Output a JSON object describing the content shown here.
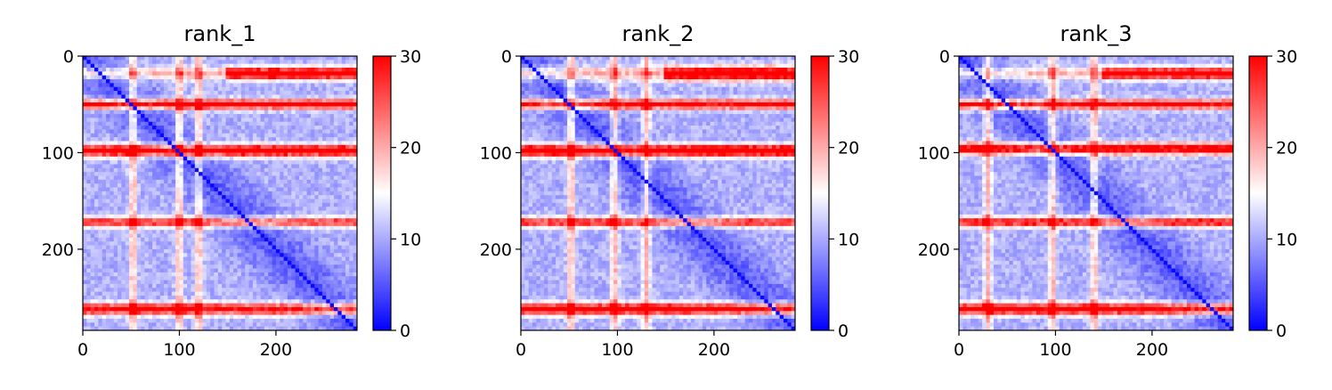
{
  "chart_data": [
    {
      "type": "heatmap",
      "title": "rank_1",
      "x_ticks": [
        "0",
        "100",
        "200"
      ],
      "y_ticks": [
        "0",
        "100",
        "200"
      ],
      "x_range": [
        0,
        284
      ],
      "y_range": [
        284,
        0
      ],
      "colorbar": {
        "ticks": [
          "0",
          "10",
          "20",
          "30"
        ],
        "vmin": 0,
        "vmax": 30,
        "colormap": "bwr",
        "colors": [
          "#0000ff",
          "#ffffff",
          "#ff0000"
        ]
      },
      "bands": [
        {
          "center": 18,
          "width": 6,
          "strength": 30,
          "x_from": 150
        },
        {
          "center": 50,
          "width": 5,
          "strength": 26
        },
        {
          "center": 98,
          "width": 6,
          "strength": 28
        },
        {
          "center": 172,
          "width": 5,
          "strength": 20
        },
        {
          "center": 262,
          "width": 6,
          "strength": 24
        }
      ],
      "stripes": [
        52,
        100,
        120
      ]
    },
    {
      "type": "heatmap",
      "title": "rank_2",
      "x_ticks": [
        "0",
        "100",
        "200"
      ],
      "y_ticks": [
        "0",
        "100",
        "200"
      ],
      "x_range": [
        0,
        284
      ],
      "y_range": [
        284,
        0
      ],
      "colorbar": {
        "ticks": [
          "0",
          "10",
          "20",
          "30"
        ],
        "vmin": 0,
        "vmax": 30,
        "colormap": "bwr",
        "colors": [
          "#0000ff",
          "#ffffff",
          "#ff0000"
        ]
      },
      "bands": [
        {
          "center": 18,
          "width": 7,
          "strength": 30,
          "x_from": 150
        },
        {
          "center": 50,
          "width": 5,
          "strength": 24
        },
        {
          "center": 98,
          "width": 6,
          "strength": 30
        },
        {
          "center": 172,
          "width": 5,
          "strength": 20
        },
        {
          "center": 262,
          "width": 6,
          "strength": 26
        }
      ],
      "stripes": [
        52,
        97,
        130
      ]
    },
    {
      "type": "heatmap",
      "title": "rank_3",
      "x_ticks": [
        "0",
        "100",
        "200"
      ],
      "y_ticks": [
        "0",
        "100",
        "200"
      ],
      "x_range": [
        0,
        284
      ],
      "y_range": [
        284,
        0
      ],
      "colorbar": {
        "ticks": [
          "0",
          "10",
          "20",
          "30"
        ],
        "vmin": 0,
        "vmax": 30,
        "colormap": "bwr",
        "colors": [
          "#0000ff",
          "#ffffff",
          "#ff0000"
        ]
      },
      "bands": [
        {
          "center": 18,
          "width": 6,
          "strength": 28,
          "x_from": 150
        },
        {
          "center": 50,
          "width": 5,
          "strength": 24
        },
        {
          "center": 96,
          "width": 6,
          "strength": 26
        },
        {
          "center": 172,
          "width": 5,
          "strength": 22
        },
        {
          "center": 262,
          "width": 6,
          "strength": 26
        }
      ],
      "stripes": [
        30,
        97,
        140
      ]
    }
  ]
}
